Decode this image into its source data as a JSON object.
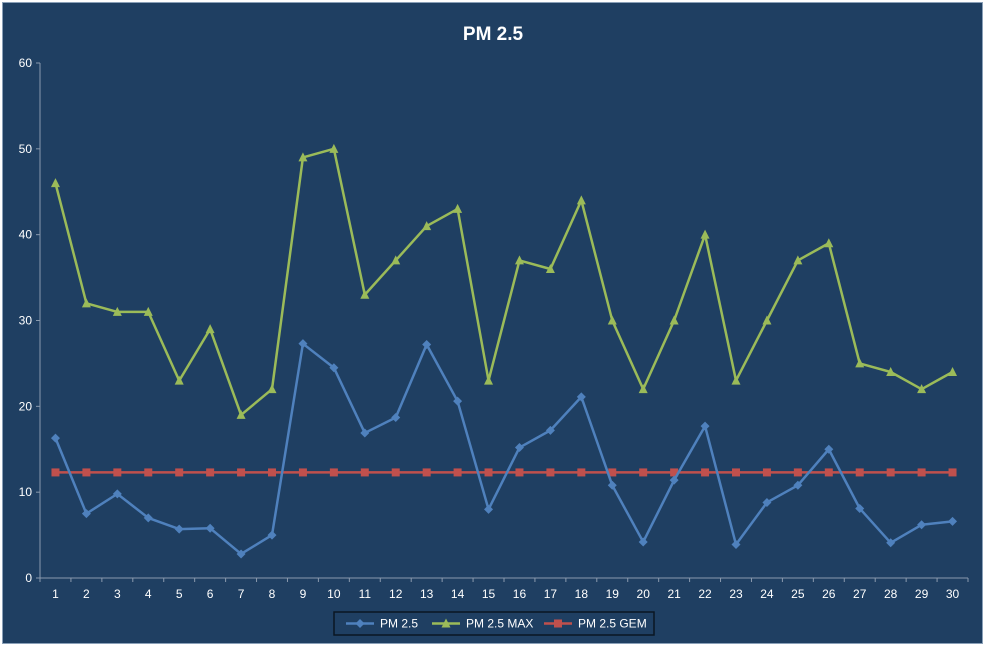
{
  "chart_data": {
    "type": "line",
    "title": "PM 2.5",
    "xlabel": "",
    "ylabel": "",
    "ylim": [
      0,
      60
    ],
    "yticks": [
      "0",
      "10",
      "20",
      "30",
      "40",
      "50",
      "60"
    ],
    "categories": [
      "1",
      "2",
      "3",
      "4",
      "5",
      "6",
      "7",
      "8",
      "9",
      "10",
      "11",
      "12",
      "13",
      "14",
      "15",
      "16",
      "17",
      "18",
      "19",
      "20",
      "21",
      "22",
      "23",
      "24",
      "25",
      "26",
      "27",
      "28",
      "29",
      "30"
    ],
    "grid": false,
    "legend_position": "bottom",
    "series": [
      {
        "name": "PM 2.5",
        "color": "#4f81bd",
        "marker": "diamond",
        "values": [
          16.3,
          7.5,
          9.8,
          7.0,
          5.7,
          5.8,
          2.8,
          5.0,
          27.3,
          24.5,
          16.9,
          18.7,
          27.2,
          20.6,
          8.0,
          15.2,
          17.2,
          21.1,
          10.8,
          4.2,
          11.4,
          17.7,
          3.9,
          8.8,
          10.8,
          15.0,
          8.1,
          4.1,
          6.2,
          6.6
        ]
      },
      {
        "name": "PM 2.5 MAX",
        "color": "#9bbb59",
        "marker": "triangle",
        "values": [
          46,
          32,
          31,
          31,
          23,
          29,
          19,
          22,
          49,
          50,
          33,
          37,
          41,
          43,
          23,
          37,
          36,
          44,
          30,
          22,
          30,
          40,
          23,
          30,
          37,
          39,
          25,
          24,
          22,
          24
        ]
      },
      {
        "name": "PM 2.5 GEM",
        "color": "#c0504d",
        "marker": "square",
        "values": [
          12.3,
          12.3,
          12.3,
          12.3,
          12.3,
          12.3,
          12.3,
          12.3,
          12.3,
          12.3,
          12.3,
          12.3,
          12.3,
          12.3,
          12.3,
          12.3,
          12.3,
          12.3,
          12.3,
          12.3,
          12.3,
          12.3,
          12.3,
          12.3,
          12.3,
          12.3,
          12.3,
          12.3,
          12.3,
          12.3
        ]
      }
    ]
  }
}
